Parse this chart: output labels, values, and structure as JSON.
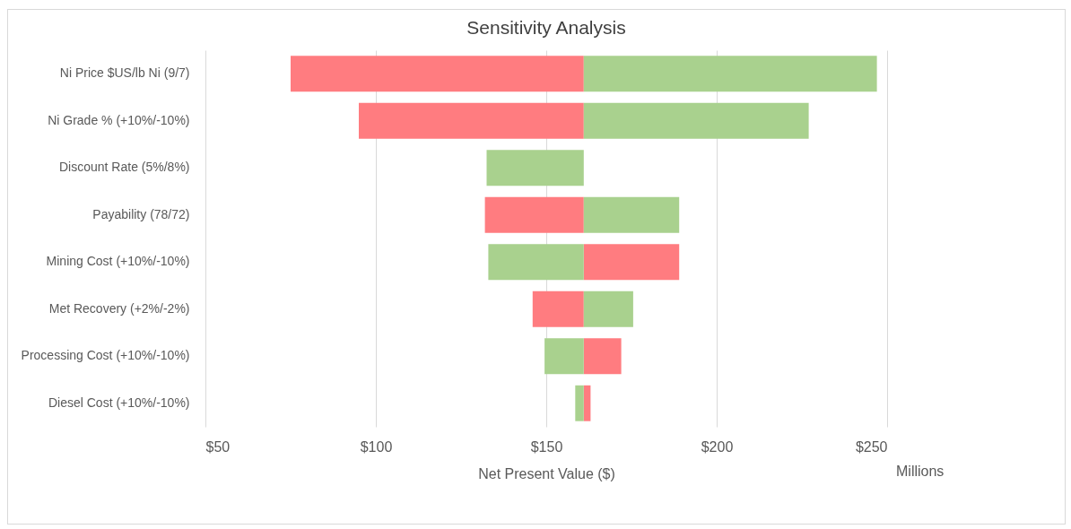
{
  "chart_data": {
    "type": "bar",
    "orientation": "horizontal",
    "title": "Sensitivity Analysis",
    "xlabel": "Net Present Value ($)",
    "categories": [
      "Ni Price $US/lb Ni (9/7)",
      "Ni Grade % (+10%/-10%)",
      "Discount Rate (5%/8%)",
      "Payability (78/72)",
      "Mining Cost (+10%/-10%)",
      "Met Recovery (+2%/-2%)",
      "Processing Cost (+10%/-10%)",
      "Diesel Cost (+10%/-10%)"
    ],
    "series": [
      {
        "color": "#ff7c80",
        "base": [
          75,
          95,
          null,
          132,
          161,
          146,
          161,
          161
        ],
        "values": [
          86,
          66,
          null,
          29,
          28,
          15,
          11,
          2
        ]
      },
      {
        "color": "#a9d18e",
        "base": [
          161,
          161,
          132.5,
          161,
          133,
          161,
          149.5,
          158.5
        ],
        "values": [
          86,
          66,
          28.5,
          28,
          28,
          14.5,
          11.5,
          2.5
        ]
      }
    ],
    "xlim": [
      50,
      250
    ],
    "xticks": [
      {
        "value": 50,
        "label": "$50"
      },
      {
        "value": 100,
        "label": "$100"
      },
      {
        "value": 150,
        "label": "$150"
      },
      {
        "value": 200,
        "label": "$200"
      },
      {
        "value": 250,
        "label": "$250"
      }
    ],
    "grid": true,
    "annotations": [
      "Millions"
    ]
  }
}
